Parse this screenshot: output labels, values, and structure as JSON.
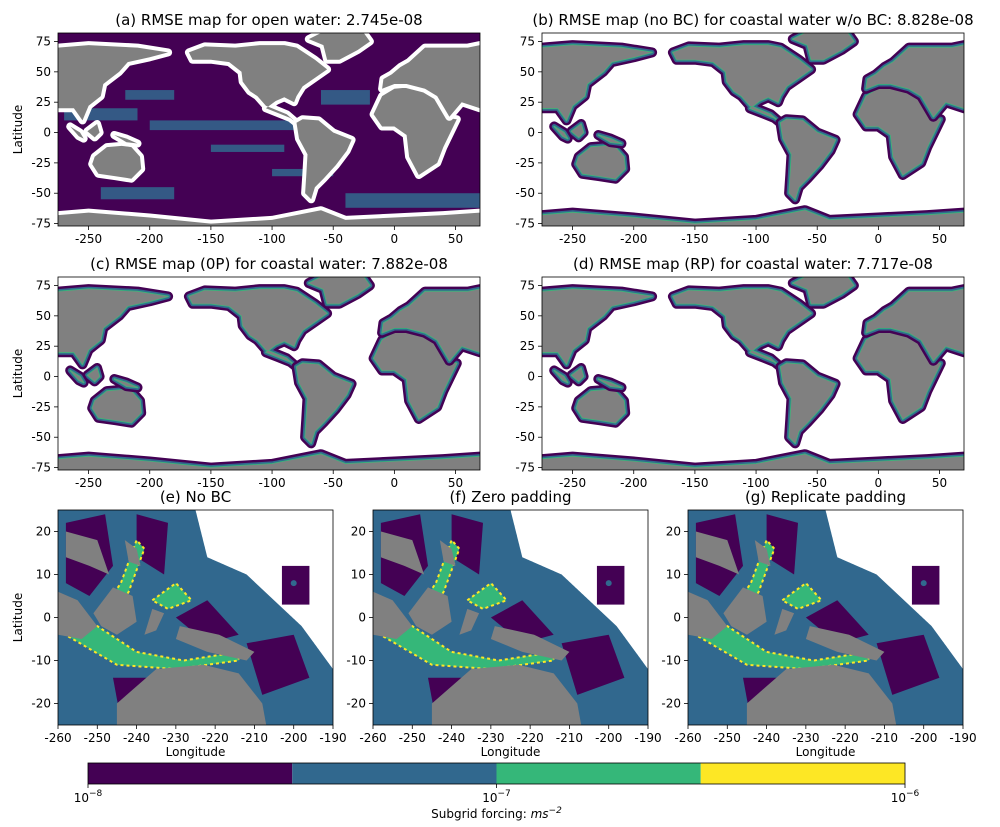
{
  "colors": {
    "land": "#808080",
    "masked": "#ffffff",
    "bin_1": "#440154",
    "bin_2": "#31688e",
    "bin_3": "#35b779",
    "bin_4": "#fde725"
  },
  "chart_data": [
    {
      "id": "a",
      "type": "heatmap",
      "title": "(a) RMSE map for open water: 2.745e-08",
      "ylabel": "Latitude",
      "xlabel": "",
      "xlim": [
        -275,
        70
      ],
      "ylim": [
        -77,
        82
      ],
      "xticks": [
        -250,
        -200,
        -150,
        -100,
        -50,
        0,
        50
      ],
      "yticks": [
        75,
        50,
        25,
        0,
        -25,
        -50,
        -75
      ],
      "masked_region": "coastal water"
    },
    {
      "id": "b",
      "type": "heatmap",
      "title": "(b) RMSE map (no BC) for coastal water w/o BC: 8.828e-08",
      "ylabel": "",
      "xlabel": "",
      "xlim": [
        -275,
        70
      ],
      "ylim": [
        -77,
        82
      ],
      "xticks": [
        -250,
        -200,
        -150,
        -100,
        -50,
        0,
        50
      ],
      "yticks": [
        75,
        50,
        25,
        0,
        -25,
        -50,
        -75
      ],
      "masked_region": "open water"
    },
    {
      "id": "c",
      "type": "heatmap",
      "title": "(c) RMSE map (0P) for coastal water: 7.882e-08",
      "ylabel": "Latitude",
      "xlabel": "",
      "xlim": [
        -275,
        70
      ],
      "ylim": [
        -77,
        82
      ],
      "xticks": [
        -250,
        -200,
        -150,
        -100,
        -50,
        0,
        50
      ],
      "yticks": [
        75,
        50,
        25,
        0,
        -25,
        -50,
        -75
      ],
      "masked_region": "open water"
    },
    {
      "id": "d",
      "type": "heatmap",
      "title": "(d) RMSE map (RP) for coastal water: 7.717e-08",
      "ylabel": "",
      "xlabel": "",
      "xlim": [
        -275,
        70
      ],
      "ylim": [
        -77,
        82
      ],
      "xticks": [
        -250,
        -200,
        -150,
        -100,
        -50,
        0,
        50
      ],
      "yticks": [
        75,
        50,
        25,
        0,
        -25,
        -50,
        -75
      ],
      "masked_region": "open water"
    },
    {
      "id": "e",
      "type": "heatmap",
      "title": "(e) No BC",
      "ylabel": "Latitude",
      "xlabel": "Longitude",
      "xlim": [
        -260,
        -190
      ],
      "ylim": [
        -25,
        25
      ],
      "xticks": [
        -260,
        -250,
        -240,
        -230,
        -220,
        -210,
        -200,
        -190
      ],
      "yticks": [
        20,
        10,
        0,
        -10,
        -20
      ]
    },
    {
      "id": "f",
      "type": "heatmap",
      "title": "(f) Zero padding",
      "ylabel": "",
      "xlabel": "Longitude",
      "xlim": [
        -260,
        -190
      ],
      "ylim": [
        -25,
        25
      ],
      "xticks": [
        -260,
        -250,
        -240,
        -230,
        -220,
        -210,
        -200,
        -190
      ],
      "yticks": [
        20,
        10,
        0,
        -10,
        -20
      ]
    },
    {
      "id": "g",
      "type": "heatmap",
      "title": "(g) Replicate padding",
      "ylabel": "",
      "xlabel": "Longitude",
      "xlim": [
        -260,
        -190
      ],
      "ylim": [
        -25,
        25
      ],
      "xticks": [
        -260,
        -250,
        -240,
        -230,
        -220,
        -210,
        -200,
        -190
      ],
      "yticks": [
        20,
        10,
        0,
        -10,
        -20
      ]
    }
  ],
  "colorbar": {
    "label_prefix": "Subgrid forcing: ",
    "label_unit": "ms",
    "label_exp": "−2",
    "scale": "log",
    "range": [
      1e-08,
      1e-06
    ],
    "ticks": [
      {
        "base": "10",
        "exp": "−8",
        "value": 1e-08
      },
      {
        "base": "10",
        "exp": "−7",
        "value": 1e-07
      },
      {
        "base": "10",
        "exp": "−6",
        "value": 1e-06
      }
    ],
    "bins": 4
  }
}
